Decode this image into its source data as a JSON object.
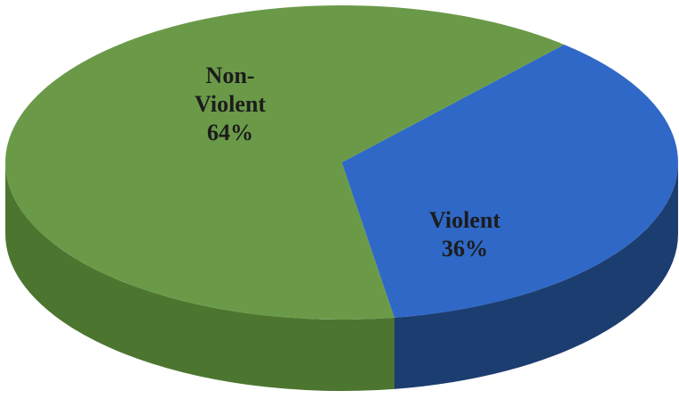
{
  "chart_data": {
    "type": "pie",
    "title": "",
    "slices": [
      {
        "label": [
          "Non-",
          "Violent"
        ],
        "value": 64,
        "value_label": "64%",
        "color": "#6a9a48",
        "side_color": "#4c7630"
      },
      {
        "label": [
          "Violent"
        ],
        "value": 36,
        "value_label": "36%",
        "color": "#2f68c6",
        "side_color": "#1c3d6f"
      }
    ],
    "legend": "none",
    "style": "3d"
  }
}
